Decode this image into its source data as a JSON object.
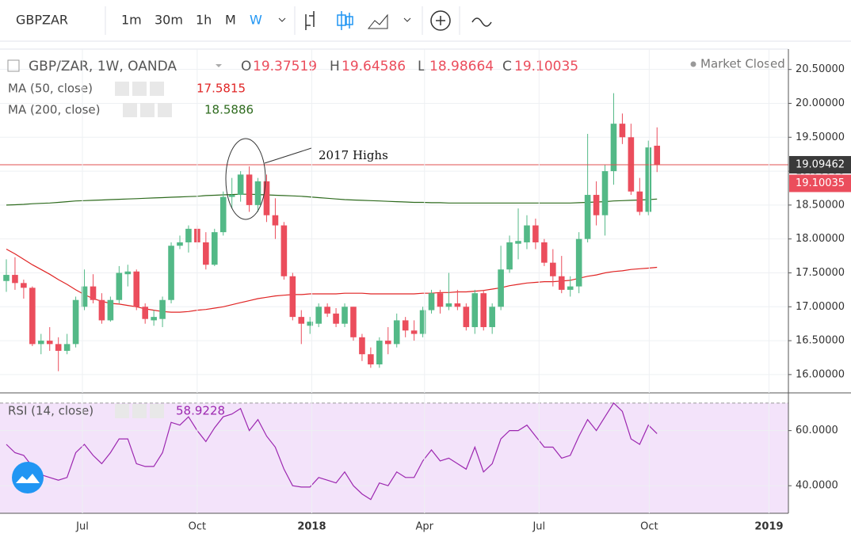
{
  "toolbar": {
    "symbol": "GBPZAR",
    "intervals": [
      "1m",
      "30m",
      "1h",
      "M",
      "W"
    ]
  },
  "x_axis": {
    "xlim": [
      -0.73,
      90.14
    ],
    "xticks": [
      {
        "value": 8.77,
        "label": "Jul"
      },
      {
        "value": 22.0,
        "label": "Oct"
      },
      {
        "value": 35.2,
        "label": "2018"
      },
      {
        "value": 48.2,
        "label": "Apr"
      },
      {
        "value": 61.4,
        "label": "Jul"
      },
      {
        "value": 74.1,
        "label": "Oct"
      },
      {
        "value": 87.9,
        "label": "2019"
      }
    ]
  },
  "chart_data": [
    {
      "type": "candlestick",
      "title": "GBP/ZAR, 1W, OANDA",
      "status": "Market Closed",
      "ohlc_labels": [
        "O",
        "H",
        "L",
        "C"
      ],
      "up_color": "#53b987",
      "down_color": "#eb4d5c",
      "ylim": [
        15.73,
        20.8
      ],
      "yticks": [
        {
          "value": 16,
          "label": "16.00000"
        },
        {
          "value": 16.5,
          "label": "16.50000"
        },
        {
          "value": 17,
          "label": "17.00000"
        },
        {
          "value": 17.5,
          "label": "17.50000"
        },
        {
          "value": 18,
          "label": "18.00000"
        },
        {
          "value": 18.5,
          "label": "18.50000"
        },
        {
          "value": 19,
          "label": "19.00000"
        },
        {
          "value": 19.5,
          "label": "19.50000"
        },
        {
          "value": 20,
          "label": "20.00000"
        },
        {
          "value": 20.5,
          "label": "20.50000"
        }
      ],
      "grid": true,
      "hline": {
        "value": 19.09462,
        "color": "#e05050"
      },
      "annotation": "2017 Highs",
      "candles": [
        {
          "open": 17.38,
          "high": 17.7,
          "low": 17.22,
          "close": 17.47
        },
        {
          "open": 17.47,
          "high": 17.73,
          "low": 17.25,
          "close": 17.35
        },
        {
          "open": 17.35,
          "high": 17.4,
          "low": 17.12,
          "close": 17.28
        },
        {
          "open": 17.28,
          "high": 17.3,
          "low": 16.42,
          "close": 16.45
        },
        {
          "open": 16.45,
          "high": 16.6,
          "low": 16.3,
          "close": 16.5
        },
        {
          "open": 16.5,
          "high": 16.7,
          "low": 16.35,
          "close": 16.45
        },
        {
          "open": 16.45,
          "high": 16.55,
          "low": 16.05,
          "close": 16.35
        },
        {
          "open": 16.35,
          "high": 16.6,
          "low": 16.3,
          "close": 16.45
        },
        {
          "open": 16.45,
          "high": 17.15,
          "low": 16.4,
          "close": 17.1
        },
        {
          "open": 17.0,
          "high": 17.55,
          "low": 16.95,
          "close": 17.3
        },
        {
          "open": 17.3,
          "high": 17.48,
          "low": 17.05,
          "close": 17.1
        },
        {
          "open": 17.1,
          "high": 17.2,
          "low": 16.75,
          "close": 16.8
        },
        {
          "open": 16.8,
          "high": 17.15,
          "low": 16.78,
          "close": 17.1
        },
        {
          "open": 17.1,
          "high": 17.6,
          "low": 17.05,
          "close": 17.5
        },
        {
          "open": 17.48,
          "high": 17.62,
          "low": 17.3,
          "close": 17.52
        },
        {
          "open": 17.52,
          "high": 17.55,
          "low": 16.95,
          "close": 17.0
        },
        {
          "open": 17.0,
          "high": 17.05,
          "low": 16.75,
          "close": 16.82
        },
        {
          "open": 16.8,
          "high": 16.95,
          "low": 16.72,
          "close": 16.85
        },
        {
          "open": 16.82,
          "high": 17.15,
          "low": 16.7,
          "close": 17.1
        },
        {
          "open": 17.1,
          "high": 17.95,
          "low": 17.05,
          "close": 17.9
        },
        {
          "open": 17.9,
          "high": 18.05,
          "low": 17.85,
          "close": 17.95
        },
        {
          "open": 17.95,
          "high": 18.2,
          "low": 17.8,
          "close": 18.15
        },
        {
          "open": 18.15,
          "high": 18.2,
          "low": 17.85,
          "close": 17.95
        },
        {
          "open": 17.95,
          "high": 18.1,
          "low": 17.55,
          "close": 17.62
        },
        {
          "open": 17.62,
          "high": 18.15,
          "low": 17.6,
          "close": 18.1
        },
        {
          "open": 18.1,
          "high": 18.7,
          "low": 18.05,
          "close": 18.62
        },
        {
          "open": 18.62,
          "high": 18.9,
          "low": 18.45,
          "close": 18.65
        },
        {
          "open": 18.65,
          "high": 19.0,
          "low": 18.55,
          "close": 18.95
        },
        {
          "open": 18.95,
          "high": 19.07,
          "low": 18.4,
          "close": 18.5
        },
        {
          "open": 18.5,
          "high": 18.9,
          "low": 18.4,
          "close": 18.85
        },
        {
          "open": 18.85,
          "high": 18.95,
          "low": 18.25,
          "close": 18.35
        },
        {
          "open": 18.35,
          "high": 18.6,
          "low": 18.0,
          "close": 18.2
        },
        {
          "open": 18.2,
          "high": 18.25,
          "low": 17.4,
          "close": 17.45
        },
        {
          "open": 17.45,
          "high": 17.5,
          "low": 16.8,
          "close": 16.85
        },
        {
          "open": 16.85,
          "high": 16.95,
          "low": 16.45,
          "close": 16.75
        },
        {
          "open": 16.72,
          "high": 16.85,
          "low": 16.6,
          "close": 16.78
        },
        {
          "open": 16.75,
          "high": 17.05,
          "low": 16.7,
          "close": 17.0
        },
        {
          "open": 17.0,
          "high": 17.05,
          "low": 16.85,
          "close": 16.9
        },
        {
          "open": 16.9,
          "high": 16.98,
          "low": 16.7,
          "close": 16.75
        },
        {
          "open": 16.75,
          "high": 17.05,
          "low": 16.7,
          "close": 17.0
        },
        {
          "open": 17.0,
          "high": 17.0,
          "low": 16.5,
          "close": 16.55
        },
        {
          "open": 16.55,
          "high": 16.6,
          "low": 16.2,
          "close": 16.3
        },
        {
          "open": 16.3,
          "high": 16.4,
          "low": 16.1,
          "close": 16.15
        },
        {
          "open": 16.15,
          "high": 16.55,
          "low": 16.1,
          "close": 16.5
        },
        {
          "open": 16.5,
          "high": 16.7,
          "low": 16.3,
          "close": 16.45
        },
        {
          "open": 16.45,
          "high": 16.9,
          "low": 16.4,
          "close": 16.8
        },
        {
          "open": 16.8,
          "high": 16.85,
          "low": 16.55,
          "close": 16.65
        },
        {
          "open": 16.65,
          "high": 16.8,
          "low": 16.5,
          "close": 16.6
        },
        {
          "open": 16.6,
          "high": 17.0,
          "low": 16.55,
          "close": 16.95
        },
        {
          "open": 16.95,
          "high": 17.25,
          "low": 16.9,
          "close": 17.2
        },
        {
          "open": 17.2,
          "high": 17.25,
          "low": 16.9,
          "close": 17.0
        },
        {
          "open": 17.0,
          "high": 17.5,
          "low": 16.95,
          "close": 17.05
        },
        {
          "open": 17.05,
          "high": 17.25,
          "low": 16.95,
          "close": 17.0
        },
        {
          "open": 17.0,
          "high": 17.05,
          "low": 16.65,
          "close": 16.7
        },
        {
          "open": 16.7,
          "high": 17.25,
          "low": 16.6,
          "close": 17.2
        },
        {
          "open": 17.2,
          "high": 17.25,
          "low": 16.65,
          "close": 16.7
        },
        {
          "open": 16.7,
          "high": 17.05,
          "low": 16.6,
          "close": 17.0
        },
        {
          "open": 17.0,
          "high": 17.9,
          "low": 16.95,
          "close": 17.55
        },
        {
          "open": 17.55,
          "high": 18.05,
          "low": 17.5,
          "close": 17.95
        },
        {
          "open": 17.93,
          "high": 18.45,
          "low": 17.7,
          "close": 17.97
        },
        {
          "open": 17.95,
          "high": 18.35,
          "low": 17.85,
          "close": 18.2
        },
        {
          "open": 18.2,
          "high": 18.3,
          "low": 17.85,
          "close": 17.95
        },
        {
          "open": 17.95,
          "high": 18.0,
          "low": 17.6,
          "close": 17.65
        },
        {
          "open": 17.65,
          "high": 17.85,
          "low": 17.3,
          "close": 17.45
        },
        {
          "open": 17.45,
          "high": 17.75,
          "low": 17.2,
          "close": 17.25
        },
        {
          "open": 17.25,
          "high": 17.45,
          "low": 17.15,
          "close": 17.3
        },
        {
          "open": 17.3,
          "high": 18.1,
          "low": 17.2,
          "close": 18.0
        },
        {
          "open": 18.0,
          "high": 19.55,
          "low": 17.95,
          "close": 18.65
        },
        {
          "open": 18.65,
          "high": 18.85,
          "low": 18.2,
          "close": 18.35
        },
        {
          "open": 18.35,
          "high": 19.1,
          "low": 18.05,
          "close": 19.0
        },
        {
          "open": 19.0,
          "high": 20.15,
          "low": 18.8,
          "close": 19.7
        },
        {
          "open": 19.7,
          "high": 19.85,
          "low": 19.4,
          "close": 19.5
        },
        {
          "open": 19.5,
          "high": 19.7,
          "low": 18.65,
          "close": 18.7
        },
        {
          "open": 18.7,
          "high": 18.9,
          "low": 18.35,
          "close": 18.4
        },
        {
          "open": 18.4,
          "high": 19.45,
          "low": 18.35,
          "close": 19.35
        },
        {
          "open": 19.37519,
          "high": 19.64586,
          "low": 18.98664,
          "close": 19.10035
        }
      ],
      "overlays": [
        {
          "name": "MA (50, close)",
          "color": "#e02424",
          "values": [
            17.85,
            17.78,
            17.7,
            17.62,
            17.55,
            17.48,
            17.4,
            17.33,
            17.25,
            17.18,
            17.12,
            17.08,
            17.05,
            17.04,
            17.02,
            17.0,
            16.97,
            16.95,
            16.93,
            16.92,
            16.92,
            16.93,
            16.95,
            16.96,
            16.98,
            17.0,
            17.03,
            17.06,
            17.09,
            17.12,
            17.14,
            17.16,
            17.17,
            17.18,
            17.18,
            17.19,
            17.19,
            17.19,
            17.19,
            17.2,
            17.2,
            17.2,
            17.19,
            17.19,
            17.19,
            17.19,
            17.19,
            17.19,
            17.2,
            17.2,
            17.21,
            17.21,
            17.22,
            17.22,
            17.23,
            17.24,
            17.26,
            17.28,
            17.31,
            17.33,
            17.35,
            17.36,
            17.37,
            17.37,
            17.38,
            17.39,
            17.42,
            17.45,
            17.47,
            17.5,
            17.52,
            17.53,
            17.55,
            17.56,
            17.57,
            17.5815
          ]
        },
        {
          "name": "MA (200, close)",
          "color": "#2e6b1e",
          "values": [
            18.5,
            18.505,
            18.51,
            18.52,
            18.525,
            18.53,
            18.54,
            18.55,
            18.56,
            18.565,
            18.57,
            18.575,
            18.58,
            18.585,
            18.59,
            18.595,
            18.6,
            18.605,
            18.61,
            18.615,
            18.62,
            18.625,
            18.63,
            18.64,
            18.645,
            18.65,
            18.655,
            18.66,
            18.66,
            18.655,
            18.65,
            18.645,
            18.64,
            18.635,
            18.63,
            18.62,
            18.61,
            18.6,
            18.59,
            18.58,
            18.575,
            18.57,
            18.565,
            18.56,
            18.555,
            18.55,
            18.545,
            18.54,
            18.54,
            18.535,
            18.535,
            18.53,
            18.53,
            18.53,
            18.53,
            18.53,
            18.53,
            18.53,
            18.53,
            18.53,
            18.53,
            18.53,
            18.53,
            18.53,
            18.53,
            18.53,
            18.535,
            18.54,
            18.545,
            18.55,
            18.56,
            18.565,
            18.57,
            18.575,
            18.58,
            18.5886
          ]
        }
      ]
    },
    {
      "type": "line",
      "ylim": [
        30,
        73.4
      ],
      "yticks": [
        {
          "value": 40,
          "label": "40.0000"
        },
        {
          "value": 60,
          "label": "60.0000"
        }
      ],
      "band": [
        30,
        70
      ],
      "band_color": "#f3e3fa",
      "grid": true,
      "series": [
        {
          "name": "RSI (14, close)",
          "color": "#9c27b0",
          "values": [
            55,
            52,
            51,
            47,
            44,
            43,
            42,
            43,
            52,
            55,
            51,
            48,
            52,
            57,
            57,
            48,
            47,
            47,
            52,
            63,
            62,
            65,
            60,
            56,
            61,
            65,
            66,
            68,
            60,
            64,
            58,
            54,
            46,
            40,
            39.5,
            39.5,
            43,
            42,
            41,
            45,
            40,
            37,
            35,
            41,
            40,
            45,
            43,
            43,
            49,
            53,
            49,
            50,
            48,
            46,
            54,
            45,
            48,
            57,
            60,
            60,
            62,
            58,
            54,
            54,
            50,
            51,
            58,
            64,
            60,
            65,
            70,
            67,
            57,
            55,
            62,
            58.9228
          ]
        }
      ]
    }
  ]
}
